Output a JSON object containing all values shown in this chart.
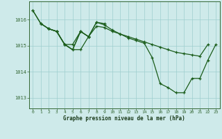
{
  "title": "Graphe pression niveau de la mer (hPa)",
  "xlim": [
    -0.5,
    23.5
  ],
  "ylim": [
    1012.6,
    1016.7
  ],
  "yticks": [
    1013,
    1014,
    1015,
    1016
  ],
  "xticks": [
    0,
    1,
    2,
    3,
    4,
    5,
    6,
    7,
    8,
    9,
    10,
    11,
    12,
    13,
    14,
    15,
    16,
    17,
    18,
    19,
    20,
    21,
    22,
    23
  ],
  "bg_color": "#ceeaea",
  "grid_color": "#9ecece",
  "line_color": "#1a5c1a",
  "series": [
    {
      "x": [
        0,
        1,
        2,
        3,
        4,
        5,
        6,
        7,
        8,
        9,
        10,
        11,
        12,
        13,
        14,
        15,
        16,
        17,
        18,
        19,
        20,
        21,
        22
      ],
      "y": [
        1016.35,
        1015.85,
        1015.65,
        1015.55,
        1015.05,
        1015.05,
        1015.55,
        1015.35,
        1015.75,
        1015.7,
        1015.55,
        1015.45,
        1015.35,
        1015.25,
        1015.15,
        1015.05,
        1014.95,
        1014.85,
        1014.75,
        1014.7,
        1014.65,
        1014.6,
        1015.05
      ]
    },
    {
      "x": [
        0,
        1,
        2,
        3,
        4,
        5,
        6,
        7,
        8,
        9,
        10,
        11,
        12,
        13,
        14,
        15,
        16,
        17,
        18,
        19,
        20,
        21,
        22,
        23
      ],
      "y": [
        1016.35,
        1015.85,
        1015.65,
        1015.55,
        1015.05,
        1014.85,
        1015.55,
        1015.35,
        1015.9,
        1015.8,
        1015.6,
        1015.45,
        1015.3,
        1015.2,
        1015.1,
        1014.55,
        1013.55,
        1013.4,
        1013.2,
        1013.2,
        1013.75,
        1013.75,
        1014.45,
        1015.05
      ]
    },
    {
      "x": [
        1,
        2,
        3,
        4,
        5,
        6,
        7
      ],
      "y": [
        1015.85,
        1015.65,
        1015.55,
        1015.05,
        1014.85,
        1014.85,
        1015.35
      ]
    },
    {
      "x": [
        2,
        3,
        4,
        5,
        6,
        7,
        8,
        9
      ],
      "y": [
        1015.65,
        1015.55,
        1015.05,
        1014.85,
        1015.55,
        1015.35,
        1015.9,
        1015.85
      ]
    }
  ]
}
